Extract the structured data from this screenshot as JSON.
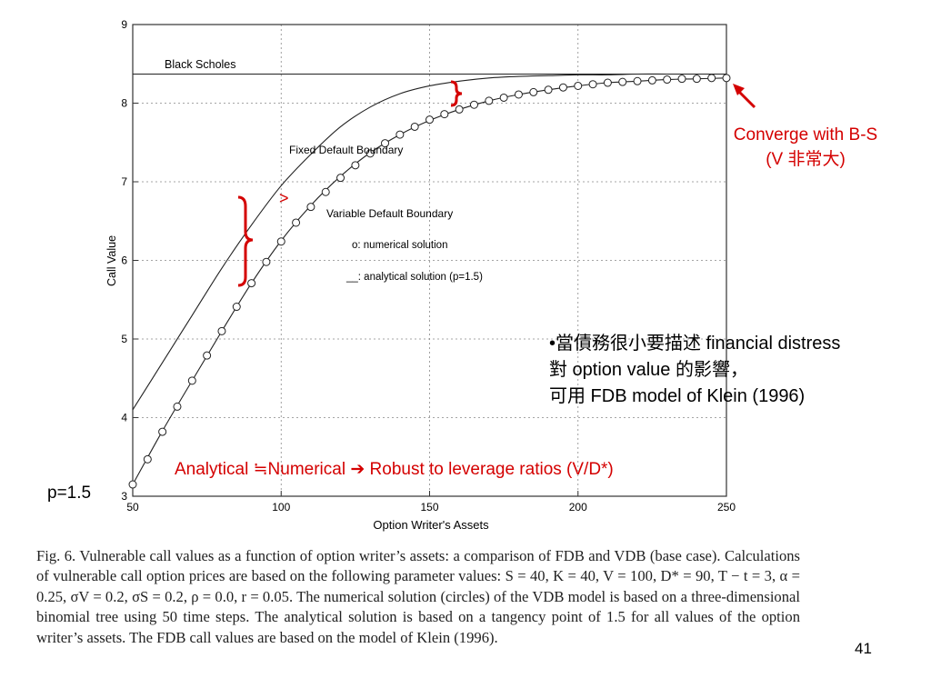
{
  "chart_data": {
    "type": "line",
    "xlabel": "Option Writer's Assets",
    "ylabel": "Call Value",
    "xlim": [
      50,
      250
    ],
    "ylim": [
      3,
      9
    ],
    "x_ticks": [
      50,
      100,
      150,
      200,
      250
    ],
    "y_ticks": [
      3,
      4,
      5,
      6,
      7,
      8,
      9
    ],
    "grid": true,
    "series": [
      {
        "name": "Black Scholes",
        "style": "solid-line",
        "x": [
          50,
          250
        ],
        "y": [
          8.37,
          8.37
        ]
      },
      {
        "name": "Fixed Default Boundary",
        "style": "solid-line",
        "x": [
          50,
          60,
          70,
          80,
          90,
          100,
          110,
          120,
          130,
          140,
          150,
          160,
          170,
          180,
          190,
          200,
          210,
          220,
          230,
          240,
          250
        ],
        "y": [
          4.1,
          4.7,
          5.3,
          5.9,
          6.45,
          6.95,
          7.35,
          7.7,
          7.95,
          8.12,
          8.22,
          8.28,
          8.32,
          8.34,
          8.35,
          8.36,
          8.36,
          8.37,
          8.37,
          8.37,
          8.37
        ]
      },
      {
        "name": "Variable Default Boundary",
        "style": "solid-line",
        "x": [
          50,
          60,
          70,
          80,
          90,
          100,
          110,
          120,
          130,
          140,
          150,
          160,
          170,
          180,
          190,
          200,
          210,
          220,
          230,
          240,
          250
        ],
        "y": [
          3.15,
          3.83,
          4.47,
          5.1,
          5.71,
          6.25,
          6.7,
          7.07,
          7.37,
          7.6,
          7.78,
          7.92,
          8.03,
          8.11,
          8.17,
          8.22,
          8.26,
          8.28,
          8.3,
          8.31,
          8.32
        ]
      },
      {
        "name": "o: numerical solution",
        "style": "circles",
        "x": [
          50,
          55,
          60,
          65,
          70,
          75,
          80,
          85,
          90,
          95,
          100,
          105,
          110,
          115,
          120,
          125,
          130,
          135,
          140,
          145,
          150,
          155,
          160,
          165,
          170,
          175,
          180,
          185,
          190,
          195,
          200,
          205,
          210,
          215,
          220,
          225,
          230,
          235,
          240,
          245,
          250
        ],
        "y": [
          3.15,
          3.47,
          3.82,
          4.14,
          4.47,
          4.79,
          5.1,
          5.41,
          5.71,
          5.98,
          6.24,
          6.48,
          6.68,
          6.87,
          7.05,
          7.21,
          7.36,
          7.49,
          7.6,
          7.7,
          7.79,
          7.86,
          7.92,
          7.98,
          8.03,
          8.07,
          8.11,
          8.14,
          8.17,
          8.2,
          8.22,
          8.24,
          8.26,
          8.27,
          8.28,
          8.29,
          8.3,
          8.31,
          8.31,
          8.32,
          8.32
        ]
      }
    ],
    "annotations": {
      "black_scholes": "Black Scholes",
      "fdb": "Fixed Default Boundary",
      "vdb": "Variable Default Boundary",
      "numerical": "o: numerical solution",
      "analytical": "__: analytical solution (p=1.5)",
      "greater_than": ">"
    },
    "accent_color": "#d40000"
  },
  "notes": {
    "converge_line1": "Converge with B-S",
    "converge_line2": "(V 非常大)",
    "bullet_line1": "•當債務很小要描述 financial distress",
    "bullet_line2": "對 option value 的影響，",
    "bullet_line3": "可用 FDB model of Klein (1996)",
    "analytical_note": "Analytical ≒Numerical ➔ Robust to leverage ratios (V/D*)",
    "p_label": "p=1.5"
  },
  "caption": "Fig. 6. Vulnerable call values as a function of option writer’s assets: a comparison of FDB and VDB (base case). Calculations of vulnerable call option prices are based on the following parameter values: S = 40, K = 40, V = 100, D* = 90, T − t = 3, α = 0.25, σV = 0.2, σS = 0.2, ρ = 0.0, r = 0.05. The numerical solution (circles) of the VDB model is based on a three-dimensional binomial tree using 50 time steps. The analytical solution is based on a tangency point of 1.5 for all values of the option writer’s assets. The FDB call values are based on the model of Klein (1996).",
  "page_number": "41"
}
